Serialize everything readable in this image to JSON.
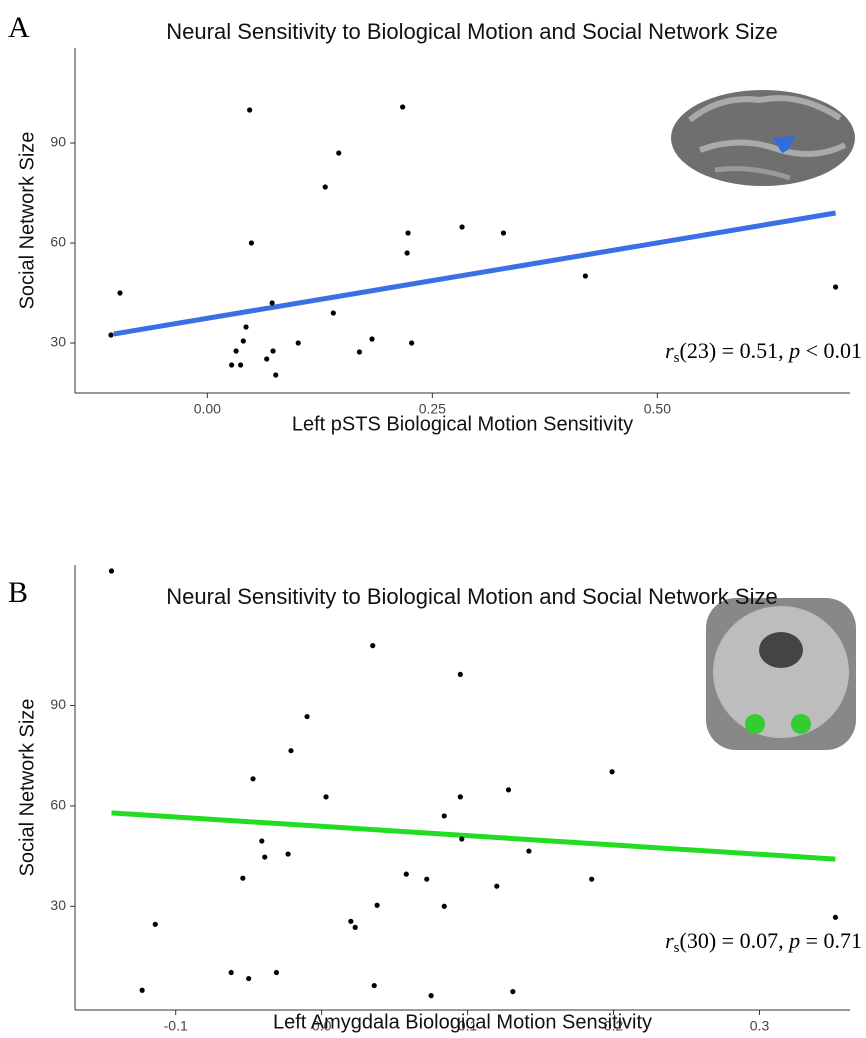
{
  "chart_data": [
    {
      "type": "scatter",
      "panel_label": "A",
      "title": "Neural Sensitivity to Biological Motion and Social Network Size",
      "x_label": "Left pSTS Biological Motion Sensitivity",
      "y_label": "Social Network Size",
      "x": [
        -0.107,
        -0.097,
        0.027,
        0.032,
        0.037,
        0.04,
        0.043,
        0.047,
        0.049,
        0.066,
        0.072,
        0.073,
        0.076,
        0.101,
        0.131,
        0.14,
        0.146,
        0.169,
        0.183,
        0.217,
        0.222,
        0.223,
        0.227,
        0.283,
        0.329,
        0.42,
        0.698
      ],
      "values": [
        32.4,
        45,
        23.4,
        27.6,
        23.4,
        30.6,
        34.8,
        99.9,
        60,
        25.2,
        42,
        27.6,
        20.4,
        30,
        76.8,
        39,
        87,
        27.3,
        31.2,
        100.8,
        57,
        63,
        30,
        64.8,
        63,
        50.1,
        46.8
      ],
      "color": "#000000",
      "fit_line": {
        "x": [
          -0.104,
          0.698
        ],
        "values": [
          32.7,
          69
        ],
        "color": "#3b6fe6"
      },
      "annotation": [
        "r",
        "s",
        "(23) = 0.51, ",
        "p",
        " < 0.01"
      ],
      "xlim": [
        -0.147,
        0.714
      ],
      "ylim": [
        15,
        118.5
      ],
      "xticks": [
        {
          "value": 0,
          "label": "0.00"
        },
        0.25,
        {
          "value": 0.5,
          "label": "0.50"
        }
      ],
      "yticks": [
        30,
        60,
        90
      ]
    },
    {
      "type": "scatter",
      "panel_label": "B",
      "title": "Neural Sensitivity to Biological Motion and Social Network Size",
      "x_label": "Left Amygdala Biological Motion Sensitivity",
      "y_label": "Social Network Size",
      "x": [
        -0.144,
        -0.123,
        -0.114,
        -0.062,
        -0.05,
        -0.047,
        -0.041,
        -0.039,
        -0.054,
        -0.031,
        -0.021,
        -0.023,
        -0.01,
        0.003,
        0.02,
        0.023,
        0.035,
        0.036,
        0.038,
        0.058,
        0.072,
        0.075,
        0.084,
        0.084,
        0.095,
        0.096,
        0.095,
        0.12,
        0.128,
        0.131,
        0.142,
        0.185,
        0.199,
        0.352
      ],
      "values": [
        130.2,
        4.9,
        24.6,
        10.2,
        8.4,
        68.1,
        49.5,
        44.7,
        38.4,
        10.2,
        76.5,
        45.6,
        86.7,
        62.7,
        25.5,
        23.7,
        107.9,
        6.3,
        30.3,
        39.6,
        38.1,
        3.3,
        30,
        57,
        99.3,
        50.1,
        62.7,
        36,
        64.8,
        4.5,
        46.5,
        38.1,
        70.2,
        26.7
      ],
      "color": "#000000",
      "fit_line": {
        "x": [
          -0.144,
          0.352
        ],
        "values": [
          57.9,
          44.1
        ],
        "color": "#22dd22"
      },
      "annotation": [
        "r",
        "s",
        "(30) = 0.07, ",
        "p",
        " = 0.71"
      ],
      "xlim": [
        -0.169,
        0.362
      ],
      "ylim": [
        -1,
        132
      ],
      "xticks": [
        -0.1,
        {
          "value": 0,
          "label": "0.0"
        },
        0.1,
        0.2,
        0.3
      ],
      "yticks": [
        30,
        60,
        90
      ]
    }
  ]
}
